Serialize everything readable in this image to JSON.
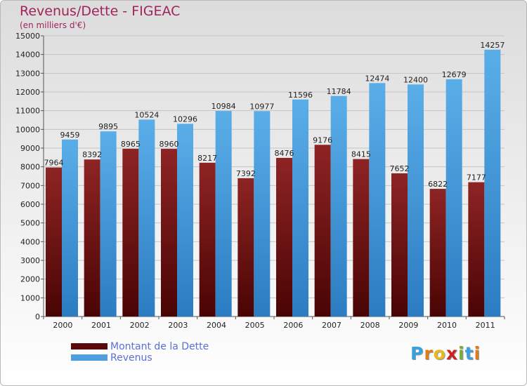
{
  "header": {
    "title": "Revenus/Dette - FIGEAC",
    "subtitle": "(en milliers d'€)"
  },
  "chart_data": {
    "type": "bar",
    "title": "Revenus/Dette - FIGEAC",
    "subtitle": "(en milliers d'€)",
    "categories": [
      "2000",
      "2001",
      "2002",
      "2003",
      "2004",
      "2005",
      "2006",
      "2007",
      "2008",
      "2009",
      "2010",
      "2011"
    ],
    "series": [
      {
        "name": "Montant de la Dette",
        "color": "#7a1414",
        "values": [
          7964,
          8392,
          8965,
          8960,
          8217,
          7392,
          8476,
          9176,
          8415,
          7652,
          6822,
          7177
        ]
      },
      {
        "name": "Revenus",
        "color": "#4d9fe0",
        "values": [
          9459,
          9895,
          10524,
          10296,
          10984,
          10977,
          11596,
          11784,
          12474,
          12400,
          12679,
          14257
        ]
      }
    ],
    "ylim": [
      0,
      15000
    ],
    "ytick_step": 1000,
    "grid": true,
    "legend_position": "bottom-left"
  },
  "logo": {
    "letters": [
      "P",
      "r",
      "o",
      "x",
      "i",
      "t",
      "i"
    ],
    "colors": [
      "#3aa0dc",
      "#e07b1c",
      "#e8b820",
      "#cc2222",
      "#7aa93c",
      "#3aa0dc",
      "#e07b1c"
    ]
  }
}
